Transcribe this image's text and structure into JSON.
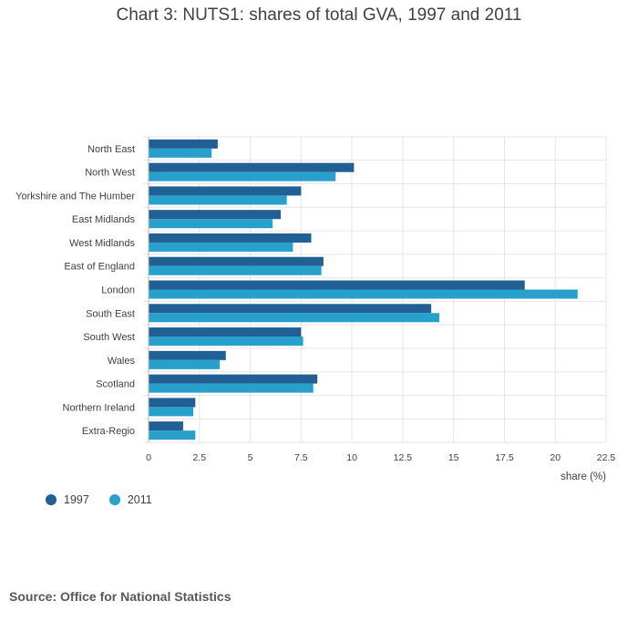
{
  "chart_data": {
    "type": "bar",
    "orientation": "horizontal",
    "title": "Chart 3: NUTS1: shares of total GVA, 1997 and 2011",
    "xlabel": "share (%)",
    "ylabel": "",
    "xlim": [
      0,
      22.5
    ],
    "x_ticks": [
      "0",
      "2.5",
      "5",
      "7.5",
      "10",
      "12.5",
      "15",
      "17.5",
      "20",
      "22.5"
    ],
    "grid": true,
    "legend_position": "bottom-left",
    "categories": [
      "North East",
      "North West",
      "Yorkshire and The Humber",
      "East Midlands",
      "West Midlands",
      "East of England",
      "London",
      "South East",
      "South West",
      "Wales",
      "Scotland",
      "Northern Ireland",
      "Extra-Regio"
    ],
    "series": [
      {
        "name": "1997",
        "color": "#206095",
        "values": [
          3.4,
          10.1,
          7.5,
          6.5,
          8.0,
          8.6,
          18.5,
          13.9,
          7.5,
          3.8,
          8.3,
          2.3,
          1.7
        ]
      },
      {
        "name": "2011",
        "color": "#27a0cc",
        "values": [
          3.1,
          9.2,
          6.8,
          6.1,
          7.1,
          8.5,
          21.1,
          14.3,
          7.6,
          3.5,
          8.1,
          2.2,
          2.3
        ]
      }
    ]
  },
  "source": "Source: Office for National Statistics"
}
